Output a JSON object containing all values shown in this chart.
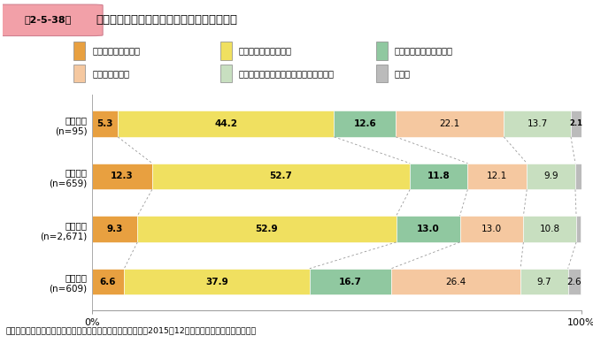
{
  "title_box_text": "第2-5-38図",
  "title_main_text": "自社の経営課題についての金融機関の理解度",
  "categories": [
    "起業段階\n(n=95)",
    "成長段階\n(n=659)",
    "成熟段階\n(n=2,671)",
    "衰退段階\n(n=609)"
  ],
  "legend_labels": [
    "十分に把握している",
    "ある程度把握している",
    "ほとんど把握していない",
    "把握していない",
    "自社の課題を金融機関に提示していない",
    "その他"
  ],
  "colors": [
    "#E8A040",
    "#F0E060",
    "#90C8A0",
    "#F5C8A0",
    "#C8DFC0",
    "#BBBBBB"
  ],
  "data": [
    [
      5.3,
      44.2,
      12.6,
      22.1,
      13.7,
      2.1
    ],
    [
      12.3,
      52.7,
      11.8,
      12.1,
      9.9,
      1.2
    ],
    [
      9.3,
      52.9,
      13.0,
      13.0,
      10.8,
      0.9
    ],
    [
      6.6,
      37.9,
      16.7,
      26.4,
      9.7,
      2.6
    ]
  ],
  "footer": "資料：中小企業庁委託「中小企業の資金調達に関する調査」（2015年12月、みずほ総合研究所（株））",
  "bar_height": 0.5,
  "title_box_color": "#F2A0A8",
  "title_box_edge": "#D08090",
  "bg_color": "#FFFFFF"
}
